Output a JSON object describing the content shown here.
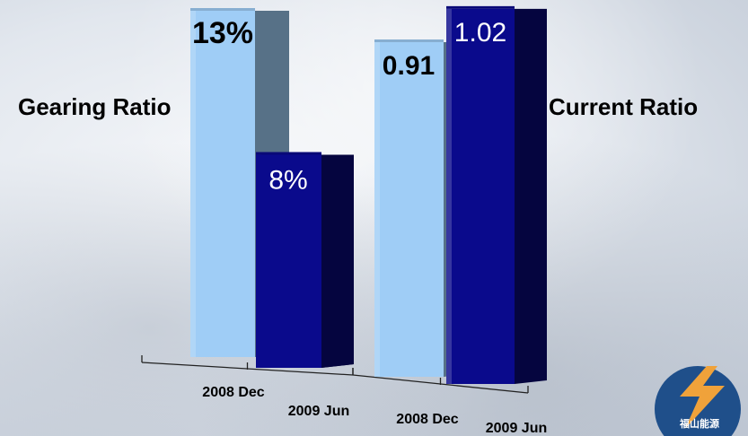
{
  "chart_data": [
    {
      "type": "bar",
      "title": "Gearing Ratio",
      "categories": [
        "2008 Dec",
        "2009 Jun"
      ],
      "values": [
        13,
        8
      ],
      "value_labels": [
        "13%",
        "8%"
      ],
      "unit": "%",
      "colors": [
        "#9fcdf6",
        "#0a0a8c"
      ]
    },
    {
      "type": "bar",
      "title": "Current Ratio",
      "categories": [
        "2008 Dec",
        "2009 Jun"
      ],
      "values": [
        0.91,
        1.02
      ],
      "value_labels": [
        "0.91",
        "1.02"
      ],
      "colors": [
        "#9fcdf6",
        "#0a0a8c"
      ]
    }
  ],
  "labels": {
    "gearing": "Gearing Ratio",
    "current": "Current Ratio"
  },
  "logo": {
    "text": "福山能源",
    "colors": [
      "#1f4f8a",
      "#f0a23a"
    ]
  }
}
